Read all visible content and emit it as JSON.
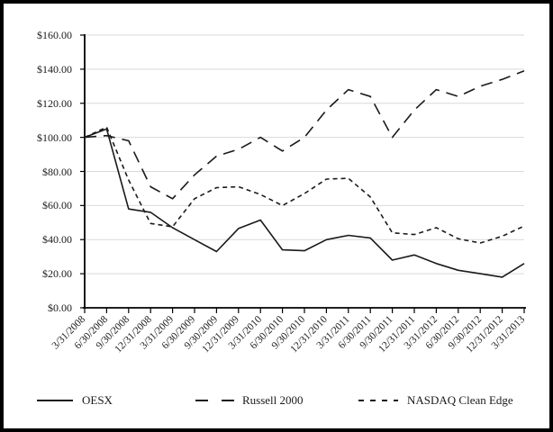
{
  "chart_data": {
    "type": "line",
    "title": "",
    "xlabel": "",
    "ylabel": "",
    "ylim": [
      0,
      160
    ],
    "ytick_step": 20,
    "ytick_labels": [
      "$0.00",
      "$20.00",
      "$40.00",
      "$60.00",
      "$80.00",
      "$100.00",
      "$120.00",
      "$140.00",
      "$160.00"
    ],
    "grid": "horizontal",
    "legend_position": "bottom",
    "categories": [
      "3/31/2008",
      "6/30/2008",
      "9/30/2008",
      "12/31/2008",
      "3/31/2009",
      "6/30/2009",
      "9/30/2009",
      "12/31/2009",
      "3/31/2010",
      "6/30/2010",
      "9/30/2010",
      "12/31/2010",
      "3/31/2011",
      "6/30/2011",
      "9/30/2011",
      "12/31/2011",
      "3/31/2012",
      "6/30/2012",
      "9/30/2012",
      "12/31/2012",
      "3/31/2013"
    ],
    "series": [
      {
        "name": "OESX",
        "style": "solid",
        "values": [
          100,
          105,
          58,
          56,
          47,
          40,
          33,
          46.5,
          51.5,
          34,
          33.5,
          40,
          42.5,
          41,
          28,
          31,
          26,
          22,
          20,
          18,
          26
        ]
      },
      {
        "name": "Russell 2000",
        "style": "long-dash",
        "values": [
          100,
          101,
          98,
          71,
          64,
          78,
          89,
          93,
          100,
          92,
          100,
          116,
          128,
          124,
          100,
          116,
          128,
          124,
          130,
          134,
          139
        ]
      },
      {
        "name": "NASDAQ Clean Edge",
        "style": "short-dash",
        "values": [
          100,
          106,
          75,
          49.5,
          47.5,
          64,
          70.5,
          71,
          66.5,
          60,
          67,
          75.5,
          76,
          65,
          44,
          43,
          47,
          40.5,
          38,
          42,
          48
        ]
      }
    ],
    "line_color": "#1a1a1a",
    "grid_color": "#d9d9d9"
  }
}
